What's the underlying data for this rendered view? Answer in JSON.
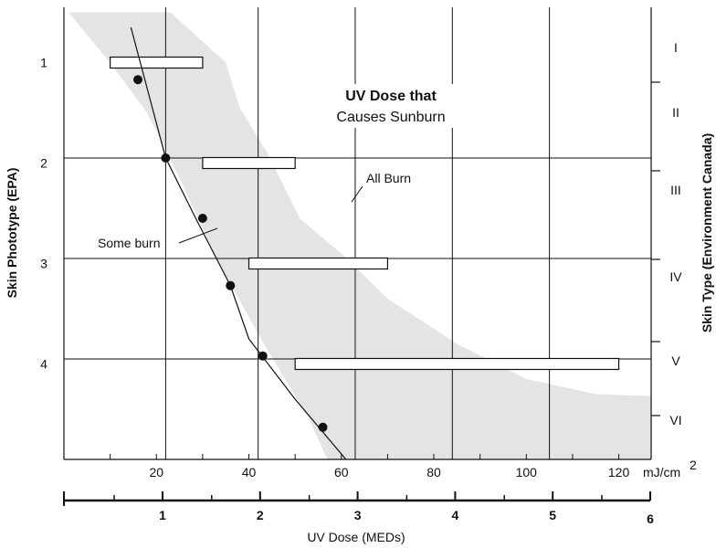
{
  "chart_data": {
    "type": "scatter",
    "title": "UV Dose that",
    "subtitle": "Causes Sunburn",
    "x_unit_label": "mJ/cm",
    "x_unit_superscript": "2",
    "xlabel": "UV Dose (MEDs)",
    "ylabel_left": "Skin Phototype (EPA)",
    "ylabel_right": "Skin Type (Environment Canada)",
    "xlim": [
      0,
      127
    ],
    "x_ticks_mj": [
      "20",
      "40",
      "60",
      "80",
      "100",
      "120"
    ],
    "x_ticks_med": [
      "1",
      "2",
      "3",
      "4",
      "5",
      "6"
    ],
    "y_ticks_left": [
      "1",
      "2",
      "3",
      "4"
    ],
    "y_ticks_right": [
      "I",
      "II",
      "III",
      "IV",
      "V",
      "VI"
    ],
    "grid": true,
    "annotations": {
      "all_burn": "All Burn",
      "some_burn": "Some burn"
    },
    "series": [
      {
        "name": "points",
        "points": [
          {
            "x": 16,
            "y": 0.72
          },
          {
            "x": 22,
            "y": 1.5
          },
          {
            "x": 30,
            "y": 2.1
          },
          {
            "x": 36,
            "y": 2.77
          },
          {
            "x": 43,
            "y": 3.47
          },
          {
            "x": 56,
            "y": 4.18
          }
        ]
      },
      {
        "name": "curve",
        "points": [
          {
            "x": 14.5,
            "y": 0.2
          },
          {
            "x": 22,
            "y": 1.5
          },
          {
            "x": 28.5,
            "y": 2.1
          },
          {
            "x": 36,
            "y": 2.77
          },
          {
            "x": 40,
            "y": 3.3
          },
          {
            "x": 50,
            "y": 3.9
          },
          {
            "x": 61,
            "y": 4.5
          }
        ]
      }
    ],
    "bars": [
      {
        "row": "1",
        "start": 10,
        "end": 30
      },
      {
        "row": "2",
        "start": 30,
        "end": 50
      },
      {
        "row": "3",
        "start": 40,
        "end": 70
      },
      {
        "row": "4",
        "start": 50,
        "end": 120
      }
    ],
    "shaded_band": [
      {
        "x": 1,
        "y": 0.05
      },
      {
        "x": 23,
        "y": 0.05
      },
      {
        "x": 35,
        "y": 0.55
      },
      {
        "x": 38,
        "y": 1.0
      },
      {
        "x": 44,
        "y": 1.45
      },
      {
        "x": 51,
        "y": 2.1
      },
      {
        "x": 60,
        "y": 2.45
      },
      {
        "x": 70,
        "y": 2.9
      },
      {
        "x": 85,
        "y": 3.35
      },
      {
        "x": 100,
        "y": 3.7
      },
      {
        "x": 115,
        "y": 3.85
      },
      {
        "x": 127,
        "y": 3.87
      },
      {
        "x": 127,
        "y": 4.5
      },
      {
        "x": 57,
        "y": 4.5
      },
      {
        "x": 53,
        "y": 4.1
      },
      {
        "x": 42,
        "y": 3.25
      },
      {
        "x": 33,
        "y": 2.5
      },
      {
        "x": 25,
        "y": 1.7
      },
      {
        "x": 18,
        "y": 1.05
      },
      {
        "x": 10,
        "y": 0.55
      }
    ]
  }
}
